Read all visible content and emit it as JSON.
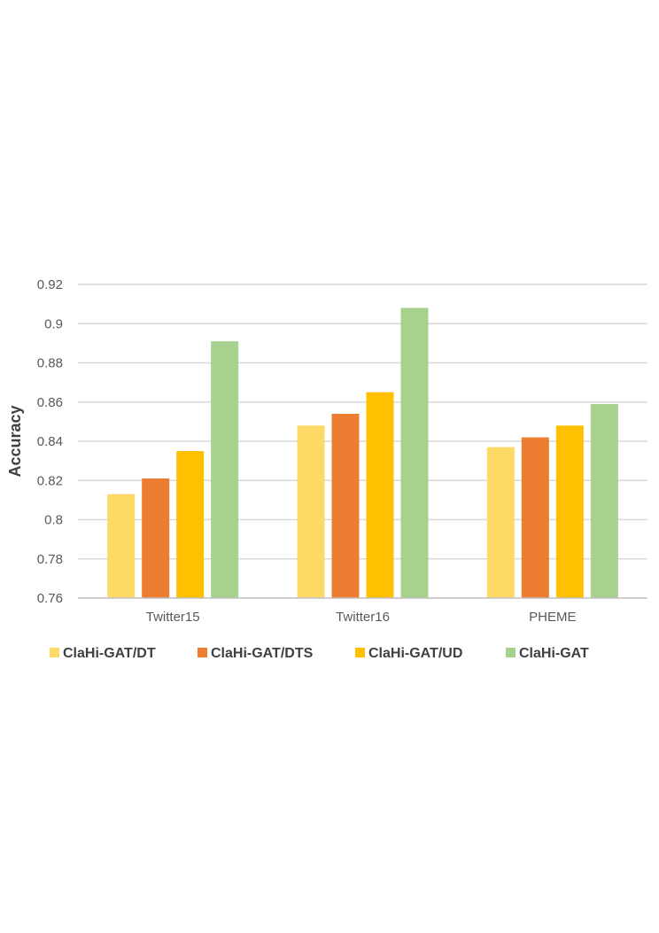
{
  "chart_data": {
    "type": "bar",
    "title": "",
    "xlabel": "",
    "ylabel": "Accuracy",
    "categories": [
      "Twitter15",
      "Twitter16",
      "PHEME"
    ],
    "series": [
      {
        "name": "ClaHi-GAT/DT",
        "color": "#FFD966",
        "values": [
          0.813,
          0.848,
          0.837
        ]
      },
      {
        "name": "ClaHi-GAT/DTS",
        "color": "#ED7D31",
        "values": [
          0.821,
          0.854,
          0.842
        ]
      },
      {
        "name": "ClaHi-GAT/UD",
        "color": "#FFC000",
        "values": [
          0.835,
          0.865,
          0.848
        ]
      },
      {
        "name": "ClaHi-GAT",
        "color": "#A9D18E",
        "values": [
          0.891,
          0.908,
          0.859
        ]
      }
    ],
    "yticks": [
      "0.76",
      "0.78",
      "0.8",
      "0.82",
      "0.84",
      "0.86",
      "0.88",
      "0.9",
      "0.92"
    ],
    "ylim": [
      0.76,
      0.92
    ],
    "grid": true,
    "legend_position": "bottom"
  }
}
